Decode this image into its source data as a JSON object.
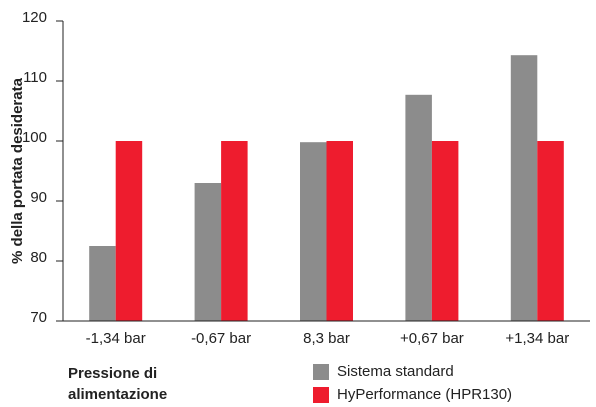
{
  "chart_data": {
    "type": "bar",
    "y_label": "% della portata desiderata",
    "x_label": "Pressione di alimentazione",
    "categories": [
      "-1,34 bar",
      "-0,67 bar",
      "8,3 bar",
      "+0,67 bar",
      "+1,34 bar"
    ],
    "series": [
      {
        "name": "Sistema standard",
        "color": "#8c8c8c",
        "values": [
          82.5,
          93,
          99.8,
          107.7,
          114.3
        ]
      },
      {
        "name": "HyPerformance (HPR130)",
        "color": "#ee1c2e",
        "values": [
          100,
          100,
          100,
          100,
          100
        ]
      }
    ],
    "ylim": [
      70,
      120
    ],
    "yticks": [
      70,
      80,
      90,
      100,
      110,
      120
    ],
    "grid": false
  }
}
